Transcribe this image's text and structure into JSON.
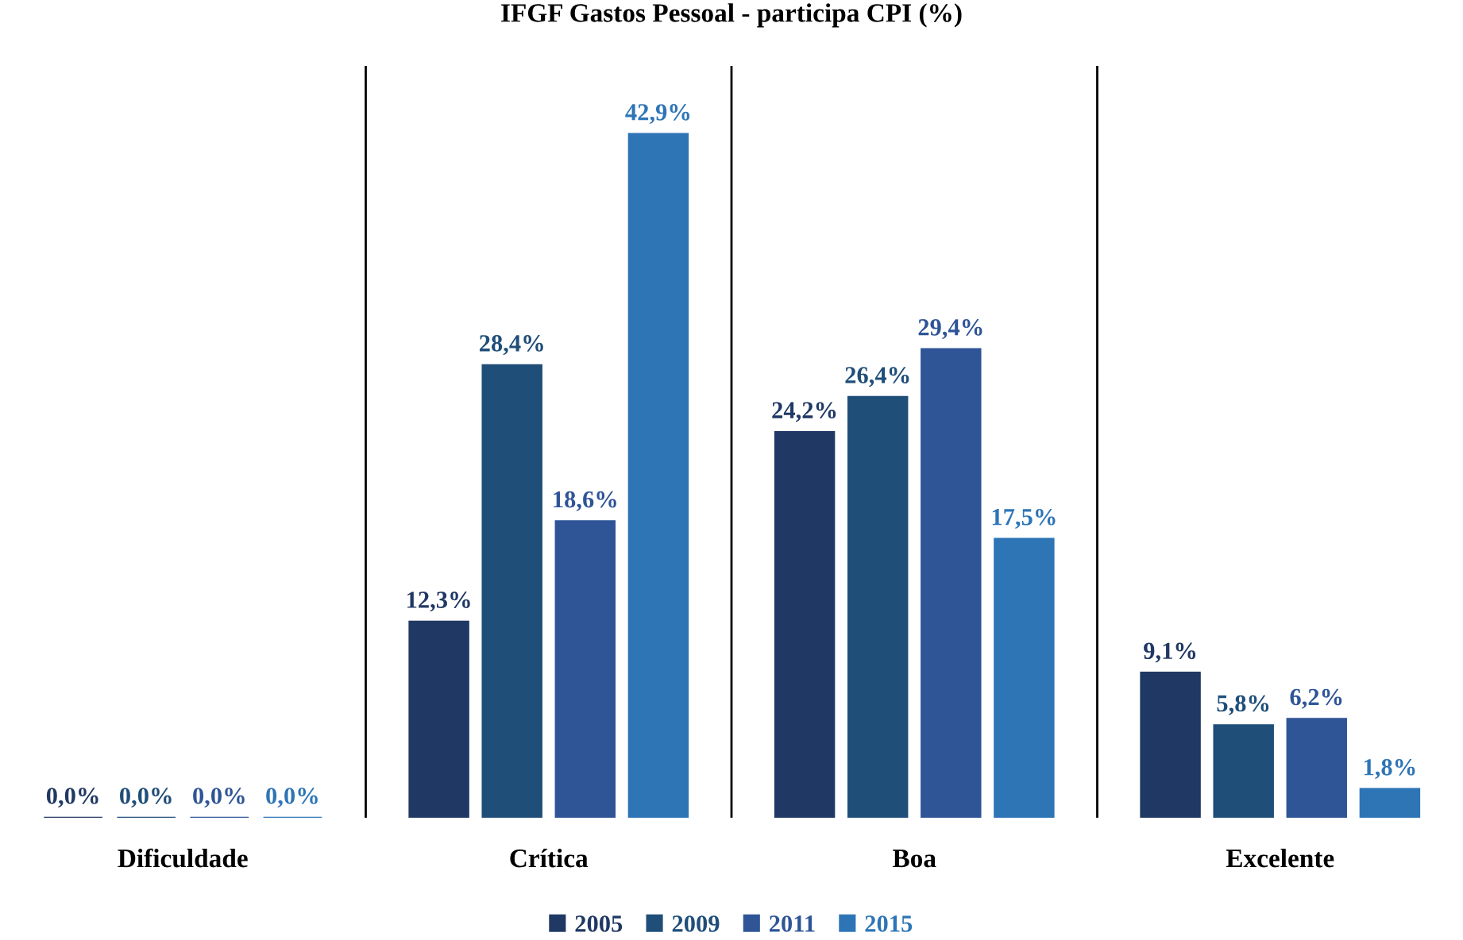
{
  "chart_data": {
    "type": "bar",
    "title": "IFGF Gastos Pessoal - participa CPI (%)",
    "categories": [
      "Dificuldade",
      "Crítica",
      "Boa",
      "Excelente"
    ],
    "series": [
      {
        "name": "2005",
        "color": "#203864",
        "values": [
          0.0,
          12.3,
          24.2,
          9.1
        ],
        "value_labels": [
          "0,0%",
          "12,3%",
          "24,2%",
          "9,1%"
        ]
      },
      {
        "name": "2009",
        "color": "#1f4e79",
        "values": [
          0.0,
          28.4,
          26.4,
          5.8
        ],
        "value_labels": [
          "0,0%",
          "28,4%",
          "26,4%",
          "5,8%"
        ]
      },
      {
        "name": "2011",
        "color": "#2f5597",
        "values": [
          0.0,
          18.6,
          29.4,
          6.2
        ],
        "value_labels": [
          "0,0%",
          "18,6%",
          "29,4%",
          "6,2%"
        ]
      },
      {
        "name": "2015",
        "color": "#2e75b6",
        "values": [
          0.0,
          42.9,
          17.5,
          1.8
        ],
        "value_labels": [
          "0,0%",
          "42,9%",
          "17,5%",
          "1,8%"
        ]
      }
    ],
    "legend": "bottom",
    "grid": false
  }
}
